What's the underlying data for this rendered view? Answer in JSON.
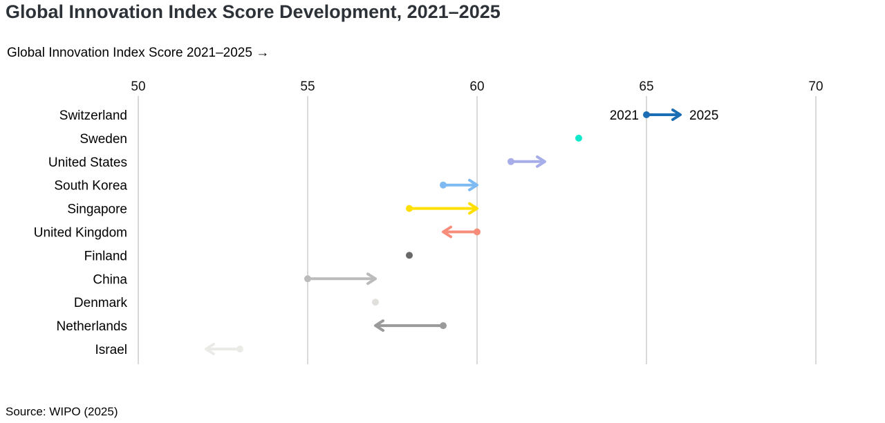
{
  "title": "Global Innovation Index Score Development, 2021–2025",
  "subtitle": "Global Innovation Index Score 2021–2025 →",
  "source": "Source: WIPO (2025)",
  "legend": {
    "start_label": "2021",
    "end_label": "2025"
  },
  "chart_data": {
    "type": "scatter",
    "variant": "arrow-dumbbell",
    "title": "Global Innovation Index Score Development, 2021–2025",
    "xlabel": "Global Innovation Index Score 2021–2025 →",
    "ylabel": "",
    "x_ticks": [
      50,
      55,
      60,
      65,
      70
    ],
    "xlim": [
      50,
      70
    ],
    "grid": "vertical",
    "legend_position": "inline-first-row",
    "categories": [
      "Switzerland",
      "Sweden",
      "United States",
      "South Korea",
      "Singapore",
      "United Kingdom",
      "Finland",
      "China",
      "Denmark",
      "Netherlands",
      "Israel"
    ],
    "series": [
      {
        "name": "2021",
        "values": [
          65,
          63,
          61,
          59,
          58,
          60,
          58,
          55,
          57,
          59,
          53
        ]
      },
      {
        "name": "2025",
        "values": [
          66,
          63,
          62,
          60,
          60,
          59,
          58,
          57,
          57,
          57,
          52
        ]
      }
    ],
    "colors": [
      "#1b6db4",
      "#10e8ca",
      "#a7ade8",
      "#7ebaf2",
      "#ffdf00",
      "#f78c7b",
      "#696969",
      "#bbbbbb",
      "#e0dfdb",
      "#9a9a9a",
      "#eaeae7"
    ],
    "gridline_color": "#d9d9d9"
  }
}
